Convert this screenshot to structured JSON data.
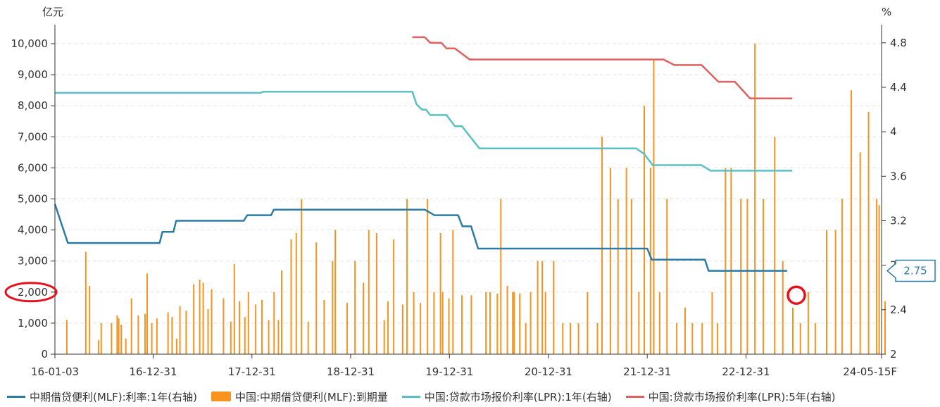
{
  "chart_data": {
    "type": "bar",
    "left_unit": "亿元",
    "right_unit": "%",
    "x_axis": {
      "start": "2016-01-03",
      "end": "2024-05-15",
      "tick_labels": [
        "16-01-03",
        "16-12-31",
        "17-12-31",
        "18-12-31",
        "19-12-31",
        "20-12-31",
        "21-12-31",
        "22-12-31",
        "24-05-15F"
      ]
    },
    "y_left": {
      "ylim": [
        0,
        10000
      ],
      "ticks": [
        "0",
        "1,000",
        "2,000",
        "3,000",
        "4,000",
        "5,000",
        "6,000",
        "7,000",
        "8,000",
        "9,000",
        "10,000"
      ]
    },
    "y_right": {
      "ylim": [
        2,
        4.9
      ],
      "ticks": [
        "2",
        "2.4",
        "2.8",
        "3.2",
        "3.6",
        "4",
        "4.4",
        "4.8"
      ]
    },
    "grid": true,
    "legend_position": "bottom",
    "colors": {
      "bars": "#F7931E",
      "mlf_rate": "#2C7BA5",
      "lpr_1y": "#5BC0C4",
      "lpr_5y": "#E06060",
      "highlight": "#E8101A"
    },
    "callout": {
      "value": "2.75",
      "series": "中期借贷便利(MLF):利率:1年(右轴)"
    },
    "series": [
      {
        "name": "中期借贷便利(MLF):利率:1年(右轴)",
        "kind": "line",
        "axis": "right",
        "points": [
          [
            "2016-01-03",
            3.35
          ],
          [
            "2016-02-20",
            3.0
          ],
          [
            "2017-01-24",
            3.0
          ],
          [
            "2017-02-03",
            3.1
          ],
          [
            "2017-03-16",
            3.1
          ],
          [
            "2017-03-26",
            3.2
          ],
          [
            "2017-12-01",
            3.2
          ],
          [
            "2017-12-14",
            3.25
          ],
          [
            "2018-03-12",
            3.25
          ],
          [
            "2018-03-22",
            3.3
          ],
          [
            "2019-10-01",
            3.3
          ],
          [
            "2019-11-05",
            3.25
          ],
          [
            "2020-02-01",
            3.25
          ],
          [
            "2020-02-17",
            3.15
          ],
          [
            "2020-03-20",
            3.15
          ],
          [
            "2020-04-15",
            2.95
          ],
          [
            "2021-12-31",
            2.95
          ],
          [
            "2022-01-17",
            2.85
          ],
          [
            "2022-08-01",
            2.85
          ],
          [
            "2022-08-15",
            2.75
          ],
          [
            "2023-06-01",
            2.75
          ]
        ]
      },
      {
        "name": "中国:中期借贷便利(MLF):到期量",
        "kind": "bar",
        "axis": "left",
        "points": [
          [
            "2016-02-16",
            1100
          ],
          [
            "2016-04-26",
            3300
          ],
          [
            "2016-05-10",
            2200
          ],
          [
            "2016-06-12",
            450
          ],
          [
            "2016-06-22",
            1000
          ],
          [
            "2016-07-30",
            1000
          ],
          [
            "2016-08-20",
            1250
          ],
          [
            "2016-08-26",
            1150
          ],
          [
            "2016-09-04",
            950
          ],
          [
            "2016-09-21",
            500
          ],
          [
            "2016-10-12",
            1800
          ],
          [
            "2016-11-06",
            1250
          ],
          [
            "2016-12-01",
            1300
          ],
          [
            "2016-12-09",
            2600
          ],
          [
            "2016-12-26",
            1000
          ],
          [
            "2017-01-14",
            1150
          ],
          [
            "2017-02-24",
            1350
          ],
          [
            "2017-03-11",
            1200
          ],
          [
            "2017-03-28",
            500
          ],
          [
            "2017-04-09",
            1550
          ],
          [
            "2017-05-02",
            1400
          ],
          [
            "2017-05-30",
            2250
          ],
          [
            "2017-06-21",
            2400
          ],
          [
            "2017-07-04",
            2300
          ],
          [
            "2017-07-22",
            1450
          ],
          [
            "2017-08-04",
            2100
          ],
          [
            "2017-09-17",
            1800
          ],
          [
            "2017-10-14",
            1050
          ],
          [
            "2017-10-27",
            2900
          ],
          [
            "2017-11-15",
            1700
          ],
          [
            "2017-12-05",
            1200
          ],
          [
            "2017-12-18",
            2000
          ],
          [
            "2018-01-14",
            1600
          ],
          [
            "2018-02-06",
            1750
          ],
          [
            "2018-03-03",
            1100
          ],
          [
            "2018-03-23",
            2000
          ],
          [
            "2018-04-08",
            1100
          ],
          [
            "2018-04-20",
            2700
          ],
          [
            "2018-05-25",
            3700
          ],
          [
            "2018-06-13",
            3900
          ],
          [
            "2018-07-02",
            5000
          ],
          [
            "2018-07-27",
            1050
          ],
          [
            "2018-08-26",
            3600
          ],
          [
            "2018-09-24",
            1750
          ],
          [
            "2018-10-25",
            3000
          ],
          [
            "2018-11-04",
            4000
          ],
          [
            "2018-12-18",
            1650
          ],
          [
            "2019-01-16",
            3000
          ],
          [
            "2019-02-16",
            2300
          ],
          [
            "2019-03-08",
            4000
          ],
          [
            "2019-04-06",
            3900
          ],
          [
            "2019-05-04",
            1100
          ],
          [
            "2019-05-18",
            1700
          ],
          [
            "2019-06-08",
            3700
          ],
          [
            "2019-07-11",
            1600
          ],
          [
            "2019-07-27",
            5000
          ],
          [
            "2019-08-21",
            2000
          ],
          [
            "2019-09-15",
            1650
          ],
          [
            "2019-10-11",
            5000
          ],
          [
            "2019-11-04",
            2000
          ],
          [
            "2019-11-28",
            3900
          ],
          [
            "2019-12-06",
            2000
          ],
          [
            "2019-12-29",
            1800
          ],
          [
            "2020-01-13",
            4000
          ],
          [
            "2020-02-15",
            1900
          ],
          [
            "2020-03-21",
            1900
          ],
          [
            "2020-05-14",
            2000
          ],
          [
            "2020-05-29",
            2000
          ],
          [
            "2020-06-25",
            1950
          ],
          [
            "2020-07-08",
            5000
          ],
          [
            "2020-08-01",
            2200
          ],
          [
            "2020-08-21",
            2000
          ],
          [
            "2020-08-26",
            2000
          ],
          [
            "2020-09-16",
            1950
          ],
          [
            "2020-10-08",
            1000
          ],
          [
            "2020-10-26",
            2000
          ],
          [
            "2020-11-21",
            3000
          ],
          [
            "2020-12-08",
            3000
          ],
          [
            "2020-12-20",
            2000
          ],
          [
            "2021-01-19",
            3000
          ],
          [
            "2021-02-22",
            1000
          ],
          [
            "2021-03-22",
            1000
          ],
          [
            "2021-04-21",
            1000
          ],
          [
            "2021-05-24",
            2000
          ],
          [
            "2021-06-30",
            1000
          ],
          [
            "2021-07-17",
            7000
          ],
          [
            "2021-08-17",
            6000
          ],
          [
            "2021-09-14",
            5000
          ],
          [
            "2021-10-15",
            6000
          ],
          [
            "2021-11-03",
            5000
          ],
          [
            "2021-11-30",
            2000
          ],
          [
            "2021-12-20",
            8000
          ],
          [
            "2022-01-12",
            6000
          ],
          [
            "2022-01-24",
            9500
          ],
          [
            "2022-02-15",
            2000
          ],
          [
            "2022-03-14",
            5000
          ],
          [
            "2022-04-19",
            1000
          ],
          [
            "2022-05-20",
            1500
          ],
          [
            "2022-06-16",
            1000
          ],
          [
            "2022-07-22",
            1000
          ],
          [
            "2022-08-28",
            2000
          ],
          [
            "2022-09-17",
            1000
          ],
          [
            "2022-10-16",
            6000
          ],
          [
            "2022-11-06",
            6000
          ],
          [
            "2022-12-12",
            5000
          ],
          [
            "2023-01-05",
            5000
          ],
          [
            "2023-02-02",
            10000
          ],
          [
            "2023-03-05",
            5000
          ],
          [
            "2023-04-16",
            7000
          ],
          [
            "2023-05-16",
            3000
          ],
          [
            "2023-06-22",
            1500
          ],
          [
            "2023-07-20",
            1000
          ],
          [
            "2023-08-18",
            2000
          ],
          [
            "2023-09-13",
            1000
          ],
          [
            "2023-10-25",
            4000
          ],
          [
            "2023-11-27",
            4000
          ],
          [
            "2023-12-21",
            5000
          ],
          [
            "2024-01-24",
            8500
          ],
          [
            "2024-02-26",
            6500
          ],
          [
            "2024-03-28",
            7800
          ],
          [
            "2024-04-27",
            5000
          ],
          [
            "2024-05-06",
            4800
          ],
          [
            "2024-05-28",
            1700
          ]
        ]
      },
      {
        "name": "中国:贷款市场报价利率(LPR):1年(右轴)",
        "kind": "line",
        "axis": "right",
        "points": [
          [
            "2016-01-03",
            4.35
          ],
          [
            "2018-02-01",
            4.35
          ],
          [
            "2018-02-09",
            4.36
          ],
          [
            "2019-08-16",
            4.36
          ],
          [
            "2019-08-31",
            4.25
          ],
          [
            "2019-09-20",
            4.2
          ],
          [
            "2019-10-05",
            4.2
          ],
          [
            "2019-10-21",
            4.15
          ],
          [
            "2019-12-20",
            4.15
          ],
          [
            "2020-01-20",
            4.05
          ],
          [
            "2020-02-15",
            4.05
          ],
          [
            "2020-04-20",
            3.85
          ],
          [
            "2021-11-20",
            3.85
          ],
          [
            "2021-12-20",
            3.8
          ],
          [
            "2022-01-20",
            3.7
          ],
          [
            "2022-07-20",
            3.7
          ],
          [
            "2022-08-22",
            3.65
          ],
          [
            "2023-06-20",
            3.65
          ]
        ]
      },
      {
        "name": "中国:贷款市场报价利率(LPR):5年(右轴)",
        "kind": "line",
        "axis": "right",
        "points": [
          [
            "2019-08-16",
            4.85
          ],
          [
            "2019-10-01",
            4.85
          ],
          [
            "2019-10-21",
            4.8
          ],
          [
            "2019-12-01",
            4.8
          ],
          [
            "2019-12-20",
            4.75
          ],
          [
            "2020-01-20",
            4.75
          ],
          [
            "2020-03-15",
            4.65
          ],
          [
            "2022-03-01",
            4.65
          ],
          [
            "2022-04-10",
            4.6
          ],
          [
            "2022-07-20",
            4.6
          ],
          [
            "2022-09-20",
            4.45
          ],
          [
            "2022-11-20",
            4.45
          ],
          [
            "2023-01-15",
            4.3
          ],
          [
            "2023-06-20",
            4.3
          ]
        ]
      }
    ]
  },
  "legend": [
    {
      "label": "中期借贷便利(MLF):利率:1年(右轴)",
      "swatch": "line",
      "color": "#2C7BA5"
    },
    {
      "label": "中国:中期借贷便利(MLF):到期量",
      "swatch": "box",
      "color": "#F7931E"
    },
    {
      "label": "中国:贷款市场报价利率(LPR):1年(右轴)",
      "swatch": "line",
      "color": "#5BC0C4"
    },
    {
      "label": "中国:贷款市场报价利率(LPR):5年(右轴)",
      "swatch": "line",
      "color": "#E06060"
    }
  ]
}
